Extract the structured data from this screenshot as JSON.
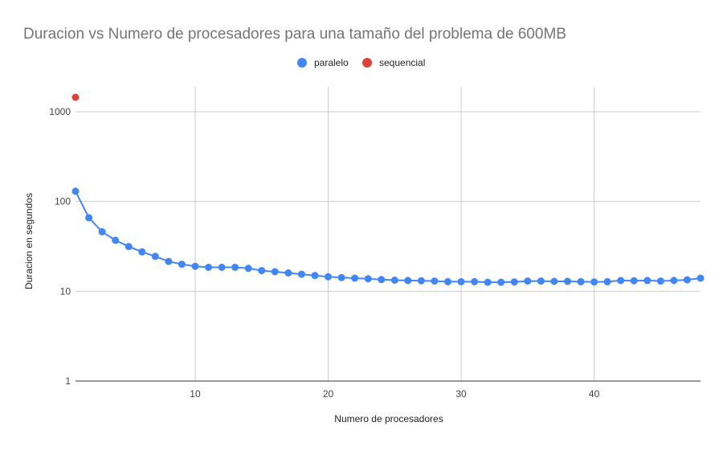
{
  "chart_data": {
    "type": "scatter",
    "title": "Duracion vs Numero de procesadores para una tamaño del problema de 600MB",
    "xlabel": "Numero de procesadores",
    "ylabel": "Duracion en segundos",
    "x_scale": "linear",
    "y_scale": "log",
    "xlim": [
      1,
      48
    ],
    "ylim": [
      1,
      2000
    ],
    "x_ticks": [
      10,
      20,
      30,
      40
    ],
    "x_tick_labels": [
      "10",
      "20",
      "30",
      "40"
    ],
    "y_ticks": [
      1,
      10,
      100,
      1000
    ],
    "y_tick_labels": [
      "1",
      "10",
      "100",
      "1000"
    ],
    "grid": true,
    "legend_position": "top",
    "series": [
      {
        "name": "paralelo",
        "color": "#4285f4",
        "line": true,
        "x": [
          1,
          2,
          3,
          4,
          5,
          6,
          7,
          8,
          9,
          10,
          11,
          12,
          13,
          14,
          15,
          16,
          17,
          18,
          19,
          20,
          21,
          22,
          23,
          24,
          25,
          26,
          27,
          28,
          29,
          30,
          31,
          32,
          33,
          34,
          35,
          36,
          37,
          38,
          39,
          40,
          41,
          42,
          43,
          44,
          45,
          46,
          47,
          48
        ],
        "y": [
          130,
          66,
          46,
          37,
          31.5,
          27.5,
          24.5,
          21.5,
          20,
          19,
          18.5,
          18.5,
          18.5,
          18,
          17,
          16.5,
          16,
          15.5,
          15,
          14.5,
          14.2,
          14,
          13.8,
          13.5,
          13.3,
          13.2,
          13.1,
          13,
          12.8,
          12.8,
          12.8,
          12.6,
          12.6,
          12.7,
          13,
          13,
          12.9,
          12.9,
          12.8,
          12.7,
          12.8,
          13.2,
          13.1,
          13.2,
          13,
          13.2,
          13.4,
          14
        ]
      },
      {
        "name": "sequencial",
        "color": "#db4437",
        "line": false,
        "x": [
          1
        ],
        "y": [
          1450
        ]
      }
    ]
  }
}
